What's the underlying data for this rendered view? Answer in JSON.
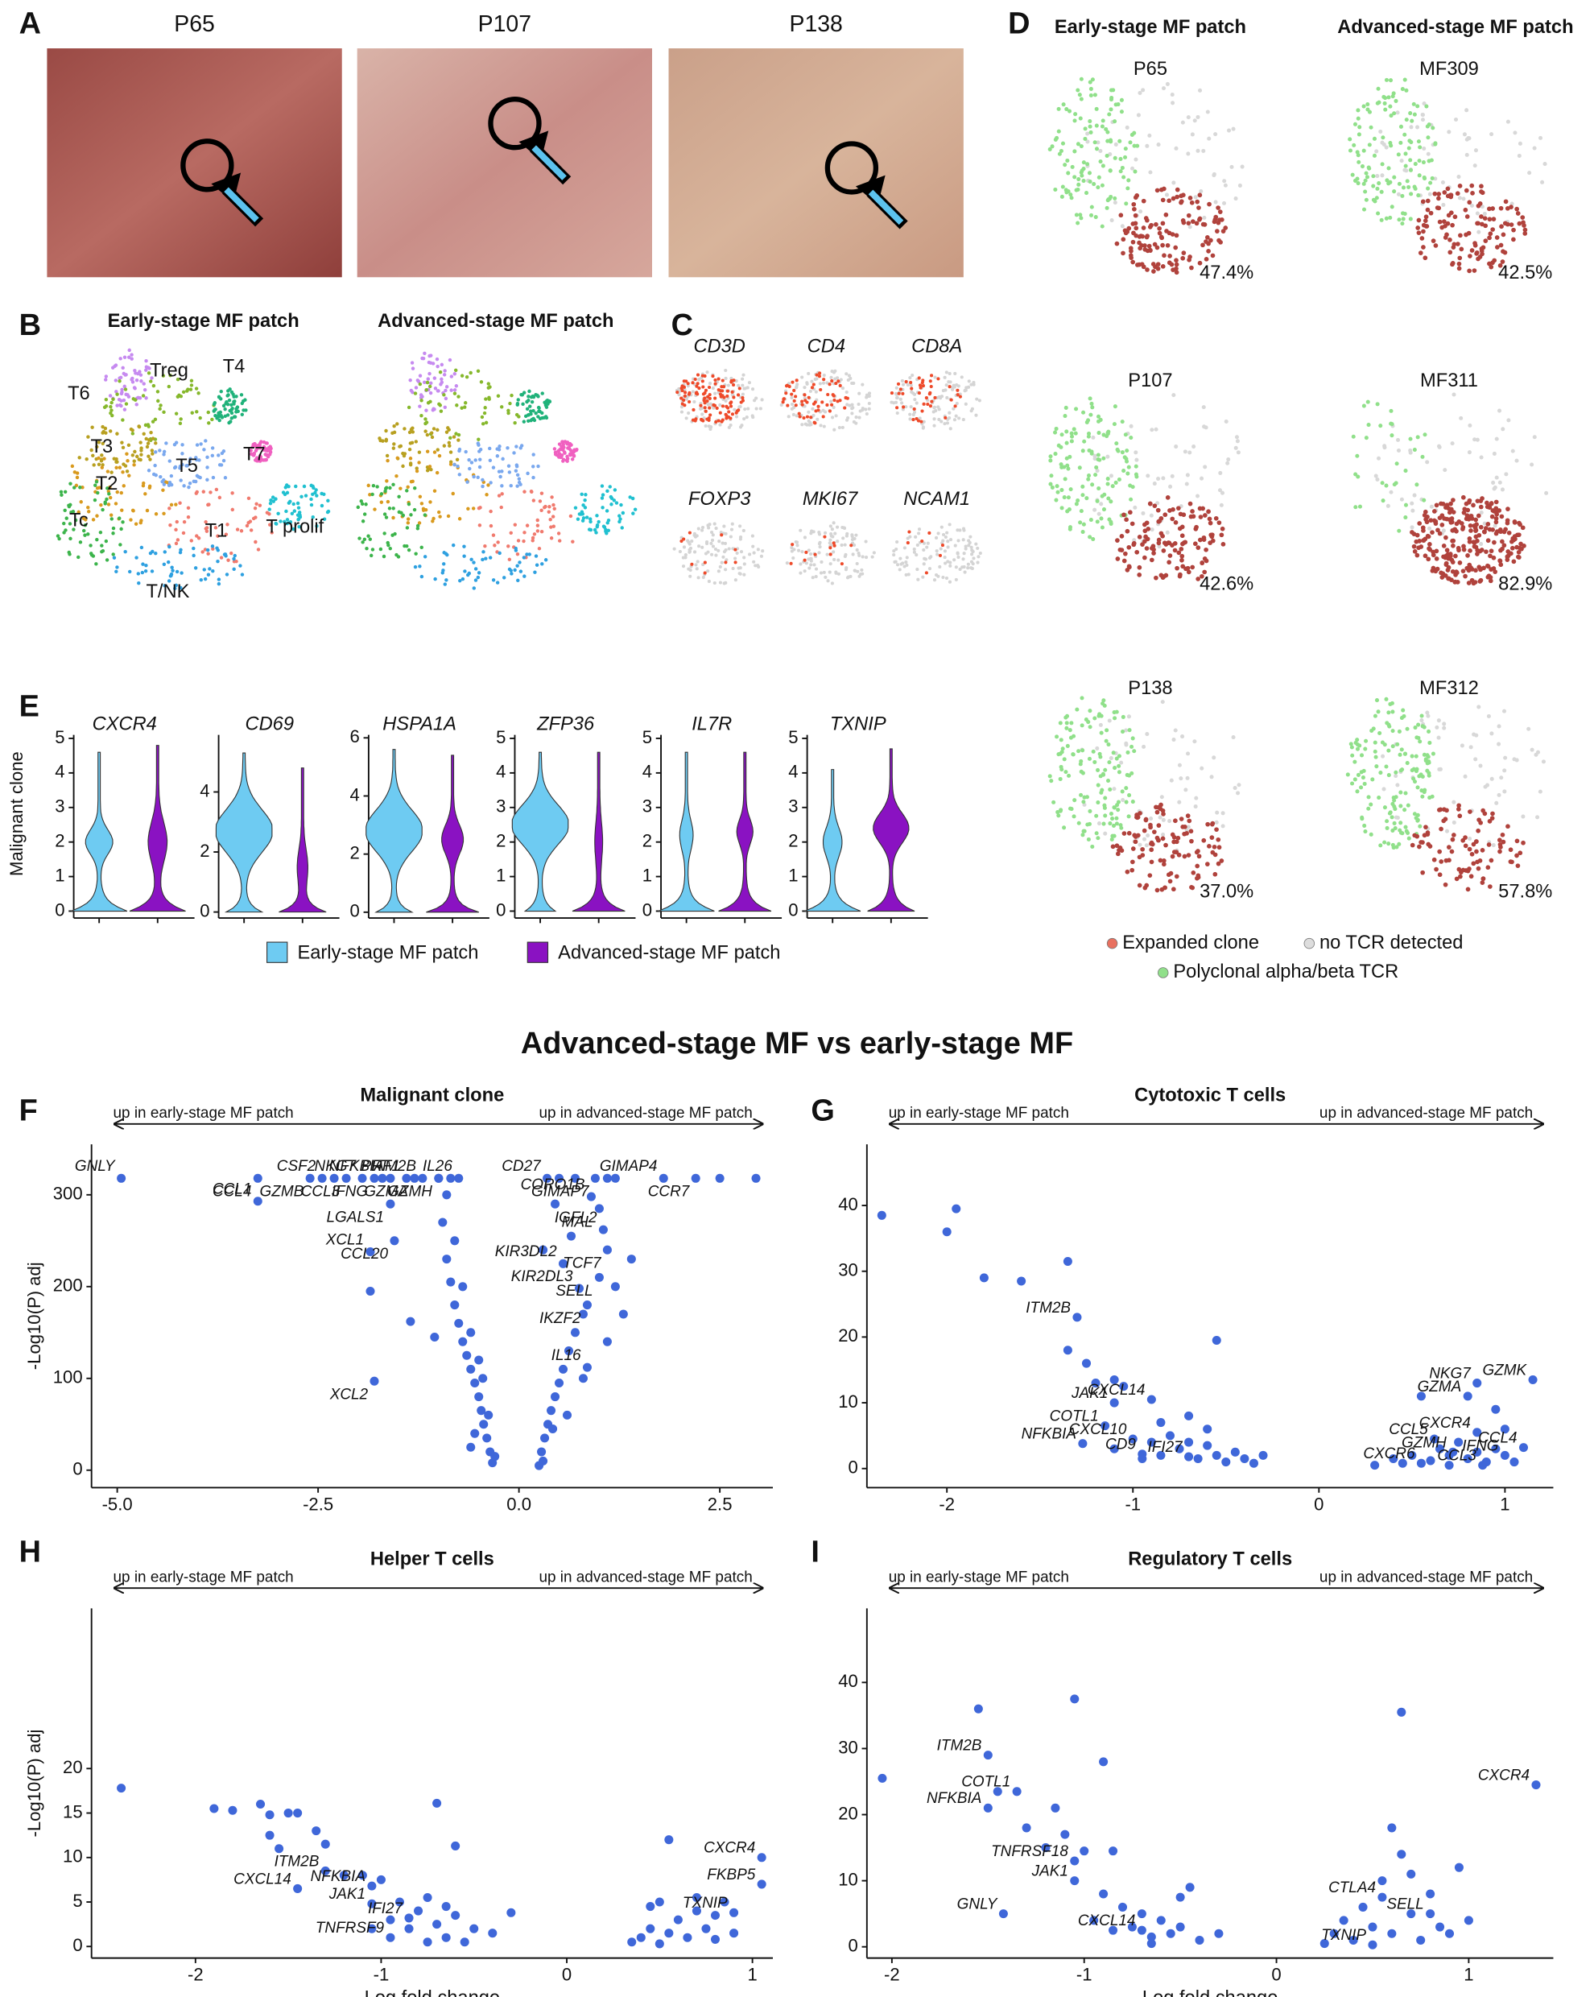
{
  "figure": {
    "panel_letters": [
      "A",
      "B",
      "C",
      "D",
      "E",
      "F",
      "G",
      "H",
      "I"
    ],
    "title": "Advanced-stage MF vs early-stage MF",
    "photos": [
      "P65",
      "P107",
      "P138"
    ],
    "umap_titles": [
      "Early-stage MF patch",
      "Advanced-stage MF patch"
    ],
    "clusters": [
      "T6",
      "Treg",
      "T4",
      "T3",
      "T7",
      "T2",
      "T5",
      "Tc",
      "T1",
      "T prolif",
      "T/NK"
    ],
    "genes": [
      "CD3D",
      "CD4",
      "CD8A",
      "FOXP3",
      "MKI67",
      "NCAM1"
    ],
    "clonotype": {
      "headers": [
        "Early-stage MF patch",
        "Advanced-stage MF patch"
      ],
      "samples": [
        "P65",
        "MF309",
        "P107",
        "MF311",
        "P138",
        "MF312"
      ],
      "expanded_fraction": [
        "47.4%",
        "42.5%",
        "42.6%",
        "82.9%",
        "37.0%",
        "57.8%"
      ],
      "legend": [
        "Expanded clone",
        "no TCR detected",
        "Polyclonal alpha/beta TCR"
      ]
    }
  },
  "chart_data": [
    {
      "type": "scatter",
      "title": "Malignant clone",
      "left_note": "up in early-stage MF patch",
      "right_note": "up in advanced-stage MF patch",
      "y_label": "-Log10(P) adj",
      "color": "#3f67d9",
      "xlim": [
        -5.32,
        3.16
      ],
      "xticks": [
        {
          "value": -5,
          "label": "-5.0"
        },
        -2.5,
        {
          "value": 0,
          "label": "0.0"
        },
        2.5
      ],
      "ylim": [
        -19,
        355
      ],
      "yticks": [
        0,
        100,
        200,
        300
      ],
      "x": [
        -4.95,
        -3.25,
        -3.25,
        -2.6,
        -2.45,
        -2.15,
        -1.95,
        -1.8,
        -1.6,
        -1.6,
        -1.4,
        -1.3,
        -1.2,
        -1.0,
        -0.75,
        -1.55,
        -1.85,
        -1.8,
        0.35,
        0.95,
        1.8,
        2.2,
        0.9,
        1.0,
        1.05,
        1.1,
        0.55,
        1.0,
        0.75,
        0.85,
        0.85,
        -1.85,
        -1.35,
        -1.05,
        -0.95,
        -0.9,
        -0.85,
        -0.8,
        -0.75,
        -0.7,
        -0.65,
        -0.6,
        -0.55,
        -0.5,
        -0.47,
        -0.44,
        -0.4,
        -0.36,
        -0.33,
        -0.9,
        -0.8,
        -0.7,
        -0.6,
        -0.5,
        -0.45,
        -0.38,
        -0.3,
        0.25,
        0.28,
        0.32,
        0.36,
        0.4,
        0.45,
        0.5,
        0.55,
        0.62,
        0.7,
        0.8,
        0.3,
        0.42,
        0.6,
        0.8,
        1.1,
        1.3,
        0.45,
        0.3,
        0.65,
        1.4,
        1.2,
        -1.0,
        -0.85,
        -1.7,
        -2.3,
        0.5,
        0.7,
        1.1,
        1.2,
        2.5,
        2.95,
        -0.55,
        -0.6
      ],
      "values": [
        318,
        318,
        293,
        318,
        318,
        318,
        318,
        318,
        318,
        290,
        318,
        318,
        318,
        318,
        318,
        250,
        238,
        97,
        318,
        318,
        318,
        318,
        298,
        285,
        262,
        240,
        225,
        210,
        198,
        180,
        112,
        195,
        162,
        145,
        270,
        230,
        205,
        180,
        160,
        140,
        125,
        110,
        95,
        80,
        65,
        50,
        35,
        20,
        8,
        300,
        250,
        200,
        150,
        120,
        100,
        60,
        15,
        5,
        20,
        35,
        50,
        65,
        80,
        95,
        110,
        130,
        150,
        170,
        10,
        45,
        60,
        100,
        140,
        170,
        290,
        240,
        255,
        230,
        200,
        318,
        318,
        318,
        318,
        318,
        318,
        318,
        318,
        318,
        318,
        40,
        25
      ],
      "point_labels": [
        "GNLY",
        "CCL4",
        "CCL1",
        "GZMB",
        "CSF2",
        "CCL3",
        "NKG7",
        "IFNG",
        "NFKBIA",
        "LGALS1",
        "PRF1",
        "GZMA",
        "ITM2B",
        "GZMH",
        "IL26",
        "CCL20",
        "XCL1",
        "XCL2",
        "CD27",
        "GIMAP7",
        "GIMAP4",
        "CCR7",
        "CORO1B",
        "MAL",
        "IGFL2",
        "TCF7",
        "KIR3DL2",
        "SELL",
        "KIR2DL3",
        "IKZF2",
        "IL16",
        null,
        null,
        null,
        null,
        null,
        null,
        null,
        null,
        null,
        null,
        null,
        null,
        null,
        null,
        null,
        null,
        null,
        null,
        null,
        null,
        null,
        null,
        null,
        null,
        null,
        null,
        null,
        null,
        null,
        null,
        null,
        null,
        null,
        null,
        null,
        null,
        null,
        null,
        null,
        null,
        null,
        null,
        null,
        null,
        null,
        null,
        null,
        null,
        null,
        null,
        null,
        null,
        null,
        null,
        null,
        null,
        null,
        null,
        null,
        null
      ]
    },
    {
      "type": "scatter",
      "title": "Cytotoxic T cells",
      "left_note": "up in early-stage MF patch",
      "right_note": "up in advanced-stage MF patch",
      "color": "#3f67d9",
      "xlim": [
        -2.43,
        1.26
      ],
      "xticks": [
        -2,
        -1,
        0,
        1
      ],
      "ylim": [
        -2.9,
        49.3
      ],
      "yticks": [
        0,
        10,
        20,
        30,
        40
      ],
      "x": [
        -1.3,
        -1.1,
        -0.9,
        -1.15,
        -1.27,
        -1.0,
        -0.95,
        -0.7,
        0.85,
        1.15,
        0.8,
        0.85,
        0.62,
        1.1,
        0.72,
        1.0,
        0.55,
        0.88,
        -2.35,
        -1.95,
        -2.0,
        -1.8,
        -1.6,
        -1.35,
        -1.35,
        -1.25,
        -1.2,
        -1.1,
        -1.05,
        -0.55,
        -0.85,
        -0.8,
        -0.75,
        -0.7,
        -0.65,
        -0.6,
        -0.55,
        -0.5,
        -0.45,
        -0.4,
        -0.35,
        -0.3,
        -0.9,
        -0.95,
        -0.85,
        -1.1,
        -0.6,
        -0.7,
        0.3,
        0.4,
        0.45,
        0.5,
        0.6,
        0.65,
        0.7,
        0.75,
        0.8,
        0.85,
        0.95,
        1.0,
        1.05,
        0.55,
        0.95,
        0.7,
        0.9
      ],
      "values": [
        23,
        10,
        10.5,
        6.5,
        3.8,
        4.5,
        2.2,
        1.8,
        13,
        13.5,
        11,
        5.5,
        4.5,
        3.2,
        2.5,
        2,
        0.8,
        0.5,
        38.5,
        39.5,
        36,
        29,
        28.5,
        31.5,
        18,
        16,
        13,
        13.5,
        12.5,
        19.5,
        7,
        5,
        3,
        4,
        1.5,
        3.5,
        2,
        1,
        2.5,
        1.5,
        0.8,
        2,
        4,
        1.5,
        2,
        3,
        6,
        8,
        0.5,
        1.5,
        0.8,
        2,
        1.2,
        3,
        0.5,
        4,
        1.5,
        2.5,
        3,
        6,
        1,
        11,
        9,
        2,
        1
      ],
      "point_labels": [
        "ITM2B",
        "JAK1",
        "CXCL14",
        "COTL1",
        "NFKBIA",
        "CXCL10",
        "CD9",
        "IFI27",
        "NKG7",
        "GZMK",
        "GZMA",
        "CXCR4",
        "CCL5",
        "CCL4",
        "GZMH",
        "IFNG",
        "CXCR6",
        "CCL3",
        null,
        null,
        null,
        null,
        null,
        null,
        null,
        null,
        null,
        null,
        null,
        null,
        null,
        null,
        null,
        null,
        null,
        null,
        null,
        null,
        null,
        null,
        null,
        null,
        null,
        null,
        null,
        null,
        null,
        null,
        null,
        null,
        null,
        null,
        null,
        null,
        null,
        null,
        null,
        null,
        null,
        null,
        null,
        null,
        null,
        null,
        null
      ]
    },
    {
      "type": "scatter",
      "title": "Helper T cells",
      "left_note": "up in early-stage MF patch",
      "right_note": "up in advanced-stage MF patch",
      "y_label": "-Log10(P) adj",
      "x_label": "Log fold change",
      "color": "#3f67d9",
      "xlim": [
        -2.56,
        1.11
      ],
      "xticks": [
        -2,
        -1,
        0,
        1
      ],
      "ylim": [
        -1.3,
        38
      ],
      "yticks": [
        0,
        5,
        10,
        15,
        20
      ],
      "x": [
        -1.3,
        -1.45,
        -1.05,
        -1.05,
        -0.85,
        -0.95,
        1.05,
        1.05,
        0.9,
        -2.4,
        -1.9,
        -1.8,
        -1.65,
        -1.6,
        -1.5,
        -1.45,
        -1.6,
        -1.55,
        -1.35,
        -1.3,
        -0.7,
        -0.6,
        -1.2,
        -1.1,
        -1.0,
        -0.9,
        -0.8,
        -0.75,
        -0.7,
        -0.65,
        -0.6,
        -0.55,
        -0.5,
        -0.4,
        -0.3,
        -0.85,
        -0.95,
        -1.05,
        -0.75,
        -0.65,
        0.35,
        0.4,
        0.45,
        0.5,
        0.55,
        0.6,
        0.65,
        0.7,
        0.75,
        0.8,
        0.85,
        0.9,
        0.55,
        0.5,
        0.7,
        0.8,
        0.45
      ],
      "values": [
        8.5,
        6.5,
        6.8,
        4.8,
        3.2,
        1,
        10,
        7,
        3.8,
        17.8,
        15.5,
        15.3,
        16,
        14.8,
        15,
        15,
        12.5,
        11,
        13,
        11.5,
        16.1,
        11.3,
        8,
        8,
        7.5,
        5,
        4,
        5.5,
        2.5,
        1,
        3.5,
        0.5,
        2,
        1.5,
        3.8,
        2,
        3,
        2,
        0.5,
        4.5,
        0.5,
        1,
        2,
        0.3,
        1.5,
        3,
        1,
        4,
        2,
        3.5,
        5,
        1.5,
        12,
        5,
        5.5,
        0.8,
        4.5
      ],
      "point_labels": [
        "ITM2B",
        "CXCL14",
        "NFKBIA",
        "JAK1",
        "IFI27",
        "TNFRSF9",
        "CXCR4",
        "FKBP5",
        "TXNIP",
        null,
        null,
        null,
        null,
        null,
        null,
        null,
        null,
        null,
        null,
        null,
        null,
        null,
        null,
        null,
        null,
        null,
        null,
        null,
        null,
        null,
        null,
        null,
        null,
        null,
        null,
        null,
        null,
        null,
        null,
        null,
        null,
        null,
        null,
        null,
        null,
        null,
        null,
        null,
        null,
        null,
        null,
        null,
        null,
        null,
        null,
        null,
        null
      ]
    },
    {
      "type": "scatter",
      "title": "Regulatory T cells",
      "left_note": "up in early-stage MF patch",
      "right_note": "up in advanced-stage MF patch",
      "x_label": "Log fold change",
      "color": "#3f67d9",
      "xlim": [
        -2.13,
        1.44
      ],
      "xticks": [
        -2,
        -1,
        0,
        1
      ],
      "ylim": [
        -1.7,
        51.2
      ],
      "yticks": [
        0,
        10,
        20,
        30,
        40
      ],
      "x": [
        -1.5,
        -1.35,
        -1.5,
        -1.05,
        -1.05,
        -1.42,
        -0.7,
        1.35,
        0.55,
        0.8,
        0.5,
        -2.05,
        -1.55,
        -1.05,
        -0.9,
        -1.45,
        -1.3,
        -1.15,
        -1.1,
        -1.2,
        -1.0,
        -0.85,
        -0.45,
        -0.5,
        -0.9,
        -0.8,
        -0.75,
        -0.7,
        -0.65,
        -0.6,
        -0.55,
        -0.5,
        -0.4,
        -0.3,
        -0.85,
        -0.95,
        -0.65,
        0.25,
        0.3,
        0.35,
        0.4,
        0.45,
        0.5,
        0.55,
        0.6,
        0.65,
        0.7,
        0.75,
        0.8,
        0.85,
        0.9,
        0.95,
        1.0,
        0.65,
        0.6,
        0.7
      ],
      "values": [
        29,
        23.5,
        21,
        13,
        10,
        5,
        2.5,
        24.5,
        7.5,
        5,
        0.3,
        25.5,
        36,
        37.5,
        28,
        23.5,
        18,
        21,
        17,
        15,
        14.5,
        14.5,
        9,
        7.5,
        8,
        6,
        3,
        5,
        1.5,
        4,
        2,
        3,
        1,
        2,
        2.5,
        4,
        0.5,
        0.5,
        2,
        4,
        1,
        6,
        3,
        10,
        2,
        14,
        5,
        1,
        8,
        3,
        2,
        12,
        4,
        35.5,
        18,
        11
      ],
      "point_labels": [
        "ITM2B",
        "COTL1",
        "NFKBIA",
        "TNFRSF18",
        "JAK1",
        "GNLY",
        "CXCL14",
        "CXCR4",
        "CTLA4",
        "SELL",
        "TXNIP",
        null,
        null,
        null,
        null,
        null,
        null,
        null,
        null,
        null,
        null,
        null,
        null,
        null,
        null,
        null,
        null,
        null,
        null,
        null,
        null,
        null,
        null,
        null,
        null,
        null,
        null,
        null,
        null,
        null,
        null,
        null,
        null,
        null,
        null,
        null,
        null,
        null,
        null,
        null,
        null,
        null,
        null,
        null,
        null,
        null
      ]
    },
    {
      "type": "violin",
      "y_label": "Malignant clone",
      "panels": [
        {
          "title": "CXCR4",
          "ylim": [
            -0.2,
            5.1
          ],
          "yticks": [
            0,
            1,
            2,
            3,
            4,
            5
          ]
        },
        {
          "title": "CD69",
          "ylim": [
            -0.2,
            5.9
          ],
          "yticks": [
            0,
            2,
            4
          ]
        },
        {
          "title": "HSPA1A",
          "ylim": [
            -0.2,
            6.1
          ],
          "yticks": [
            0,
            2,
            4,
            6
          ]
        },
        {
          "title": "ZFP36",
          "ylim": [
            -0.2,
            5.1
          ],
          "yticks": [
            0,
            1,
            2,
            3,
            4,
            5
          ]
        },
        {
          "title": "IL7R",
          "ylim": [
            -0.2,
            5.1
          ],
          "yticks": [
            0,
            1,
            2,
            3,
            4,
            5
          ]
        },
        {
          "title": "TXNIP",
          "ylim": [
            -0.2,
            5.1
          ],
          "yticks": [
            0,
            1,
            2,
            3,
            4,
            5
          ]
        }
      ],
      "series": [
        {
          "name": "Early-stage MF patch",
          "color": "#6ecbf2"
        },
        {
          "name": "Advanced-stage MF patch",
          "color": "#8a12c2"
        }
      ]
    }
  ]
}
